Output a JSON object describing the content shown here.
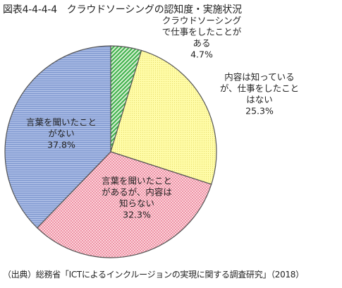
{
  "chart_data": {
    "type": "pie",
    "title": "図表4-4-4-4　クラウドソーシングの認知度・実施状況",
    "source": "（出典）総務省「ICTによるインクルージョンの実現に関する調査研究」（2018）",
    "slices": [
      {
        "label": [
          "クラウドソーシング",
          "で仕事をしたことが",
          "ある"
        ],
        "value": 4.7,
        "value_text": "4.7%",
        "color": "#3cb04a",
        "pattern": "diagonal-stripes"
      },
      {
        "label": [
          "内容は知っている",
          "が、仕事をしたこと",
          "はない"
        ],
        "value": 25.3,
        "value_text": "25.3%",
        "color": "#fffa9e",
        "pattern": "dots"
      },
      {
        "label": [
          "言葉を聞いたこと",
          "があるが、内容は",
          "知らない"
        ],
        "value": 32.3,
        "value_text": "32.3%",
        "color": "#f7b6c2",
        "pattern": "checker"
      },
      {
        "label": [
          "言葉を聞いたこと",
          "がない"
        ],
        "value": 37.8,
        "value_text": "37.8%",
        "color": "#8ea7dc",
        "pattern": "horizontal-lines"
      }
    ],
    "start_angle": "12 o'clock",
    "direction": "clockwise",
    "legend": "none"
  }
}
